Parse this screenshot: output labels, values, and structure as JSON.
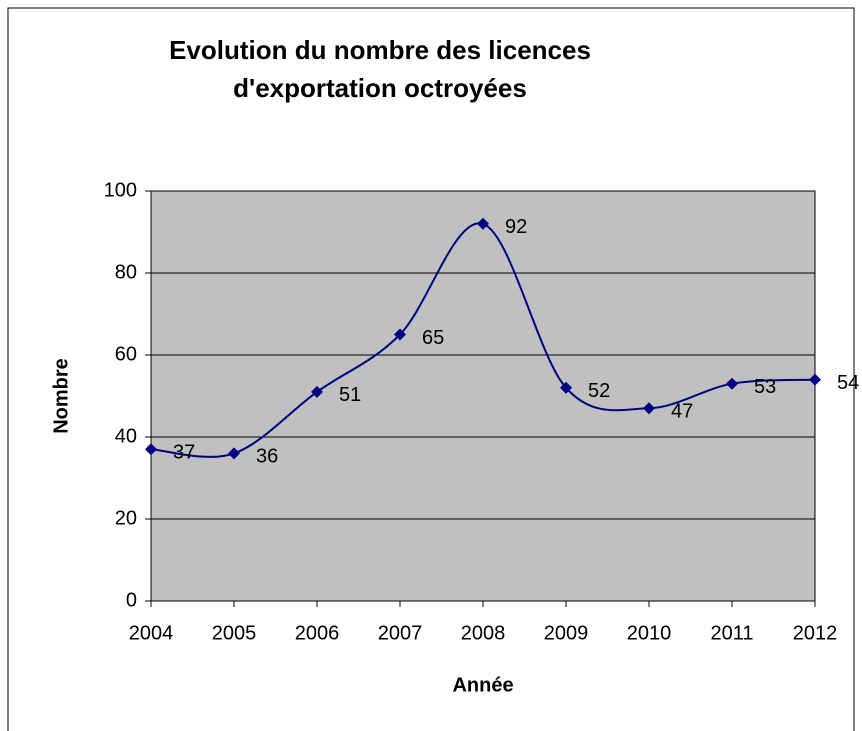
{
  "chart_data": {
    "type": "line",
    "title": [
      "Evolution du nombre des licences",
      "d'exportation octroyées"
    ],
    "x_label": "Année",
    "y_label": "Nombre",
    "categories": [
      "2004",
      "2005",
      "2006",
      "2007",
      "2008",
      "2009",
      "2010",
      "2011",
      "2012"
    ],
    "values": [
      37,
      36,
      51,
      65,
      92,
      52,
      47,
      53,
      54
    ],
    "color": "#000080",
    "ylim": [
      0,
      100
    ],
    "yticks": [
      0,
      20,
      40,
      60,
      80,
      100
    ],
    "grid": true,
    "smooth": true
  }
}
